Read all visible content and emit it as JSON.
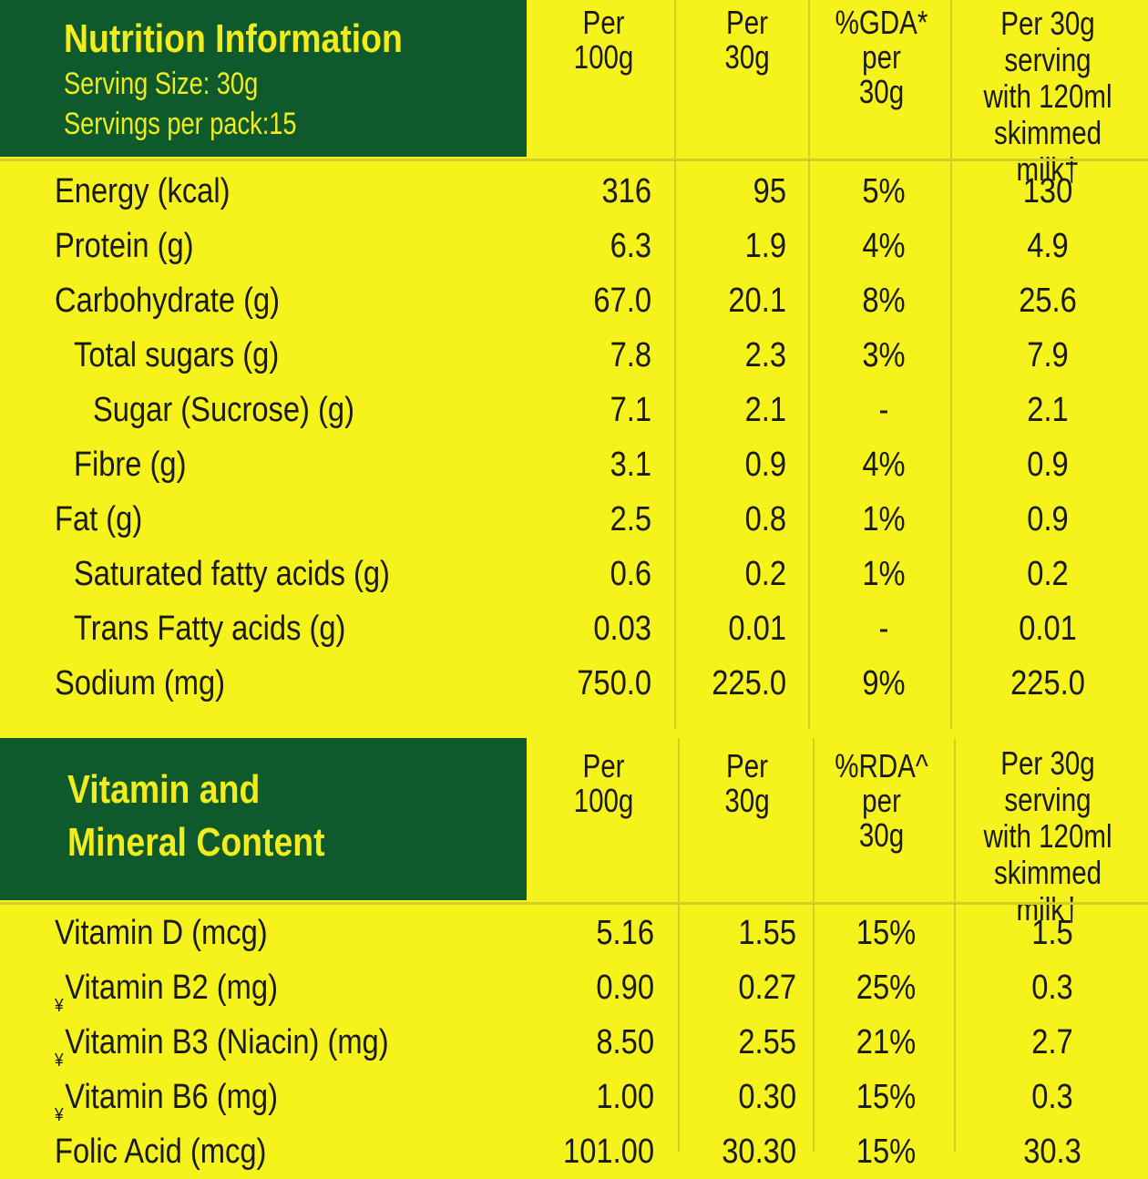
{
  "nutrition": {
    "title": "Nutrition Information",
    "serving_size": "Serving Size: 30g",
    "servings_per_pack": "Servings per pack:15",
    "columns": [
      [
        "Per",
        "100g"
      ],
      [
        "Per",
        "30g"
      ],
      [
        "%GDA*",
        "per",
        "30g"
      ],
      [
        "Per 30g",
        "serving",
        "with 120ml",
        "skimmed milk†"
      ]
    ],
    "rows": [
      {
        "label": "Energy (kcal)",
        "indent": 0,
        "v": [
          "316",
          "95",
          "5%",
          "130"
        ]
      },
      {
        "label": "Protein (g)",
        "indent": 0,
        "v": [
          "6.3",
          "1.9",
          "4%",
          "4.9"
        ]
      },
      {
        "label": "Carbohydrate (g)",
        "indent": 0,
        "v": [
          "67.0",
          "20.1",
          "8%",
          "25.6"
        ]
      },
      {
        "label": "Total sugars (g)",
        "indent": 1,
        "v": [
          "7.8",
          "2.3",
          "3%",
          "7.9"
        ]
      },
      {
        "label": "Sugar (Sucrose) (g)",
        "indent": 2,
        "v": [
          "7.1",
          "2.1",
          "-",
          "2.1"
        ]
      },
      {
        "label": "Fibre (g)",
        "indent": 1,
        "v": [
          "3.1",
          "0.9",
          "4%",
          "0.9"
        ]
      },
      {
        "label": "Fat (g)",
        "indent": 0,
        "v": [
          "2.5",
          "0.8",
          "1%",
          "0.9"
        ]
      },
      {
        "label": "Saturated fatty acids (g)",
        "indent": 1,
        "v": [
          "0.6",
          "0.2",
          "1%",
          "0.2"
        ]
      },
      {
        "label": "Trans Fatty acids (g)",
        "indent": 1,
        "v": [
          "0.03",
          "0.01",
          "-",
          "0.01"
        ]
      },
      {
        "label": "Sodium (mg)",
        "indent": 0,
        "v": [
          "750.0",
          "225.0",
          "9%",
          "225.0"
        ]
      }
    ]
  },
  "vitamins": {
    "title_line1": "Vitamin and",
    "title_line2": "Mineral Content",
    "columns": [
      [
        "Per",
        "100g"
      ],
      [
        "Per",
        "30g"
      ],
      [
        "%RDA^",
        "per",
        "30g"
      ],
      [
        "Per 30g",
        "serving",
        "with 120ml",
        "skimmed milk†"
      ]
    ],
    "rows": [
      {
        "label": "Vitamin D (mcg)",
        "mark": "",
        "v": [
          "5.16",
          "1.55",
          "15%",
          "1.5"
        ]
      },
      {
        "label": "Vitamin B2 (mg)",
        "mark": "¥",
        "v": [
          "0.90",
          "0.27",
          "25%",
          "0.3"
        ]
      },
      {
        "label": "Vitamin B3 (Niacin) (mg)",
        "mark": "¥",
        "v": [
          "8.50",
          "2.55",
          "21%",
          "2.7"
        ]
      },
      {
        "label": "Vitamin B6 (mg)",
        "mark": "¥",
        "v": [
          "1.00",
          "0.30",
          "15%",
          "0.3"
        ]
      },
      {
        "label": "Folic Acid (mcg)",
        "mark": "",
        "v": [
          "101.00",
          "30.30",
          "15%",
          "30.3"
        ]
      }
    ]
  },
  "colors": {
    "background": "#f5f21c",
    "header_green": "#0e5a2c",
    "header_text": "#f1ec1e",
    "text": "#1a1a14",
    "grid_line": "#d3cd28"
  }
}
